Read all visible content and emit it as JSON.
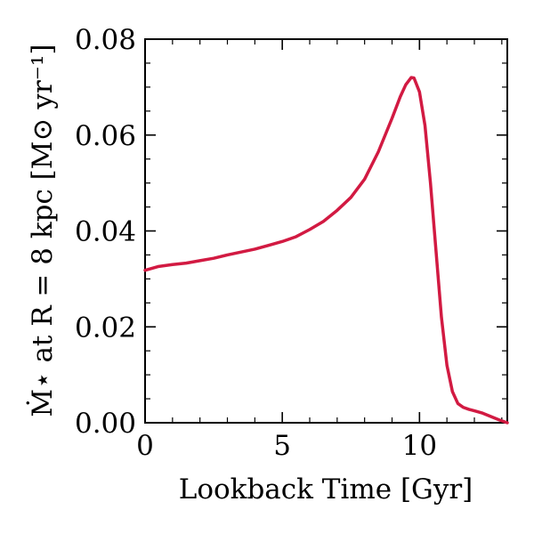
{
  "chart_data": {
    "type": "line",
    "xlabel": "Lookback Time [Gyr]",
    "ylabel": "Ṁ⋆ at R = 8 kpc [M⊙ yr⁻¹]",
    "xlim": [
      0,
      13.2
    ],
    "ylim": [
      0,
      0.08
    ],
    "x_ticks": [
      0,
      5,
      10
    ],
    "x_tick_labels": [
      "0",
      "5",
      "10"
    ],
    "y_ticks": [
      0,
      0.02,
      0.04,
      0.06,
      0.08
    ],
    "y_tick_labels": [
      "0.00",
      "0.02",
      "0.04",
      "0.06",
      "0.08"
    ],
    "grid": false,
    "colors": {
      "line": "#d21a42"
    },
    "series": [
      {
        "x": [
          0,
          0.5,
          1,
          1.5,
          2,
          2.5,
          3,
          3.5,
          4,
          4.5,
          5,
          5.5,
          6,
          6.5,
          7,
          7.5,
          8,
          8.5,
          9,
          9.3,
          9.5,
          9.7,
          9.8,
          10,
          10.2,
          10.4,
          10.6,
          10.8,
          11,
          11.2,
          11.4,
          11.6,
          11.8,
          12,
          12.3,
          12.6,
          12.9,
          13.2
        ],
        "y": [
          0.0318,
          0.0326,
          0.033,
          0.0333,
          0.0338,
          0.0343,
          0.035,
          0.0356,
          0.0362,
          0.037,
          0.0378,
          0.0388,
          0.0403,
          0.042,
          0.0443,
          0.047,
          0.0508,
          0.0565,
          0.0635,
          0.068,
          0.0705,
          0.072,
          0.0719,
          0.069,
          0.062,
          0.05,
          0.036,
          0.022,
          0.012,
          0.0065,
          0.004,
          0.0032,
          0.0028,
          0.0025,
          0.002,
          0.0013,
          0.0006,
          0.0
        ]
      }
    ]
  }
}
